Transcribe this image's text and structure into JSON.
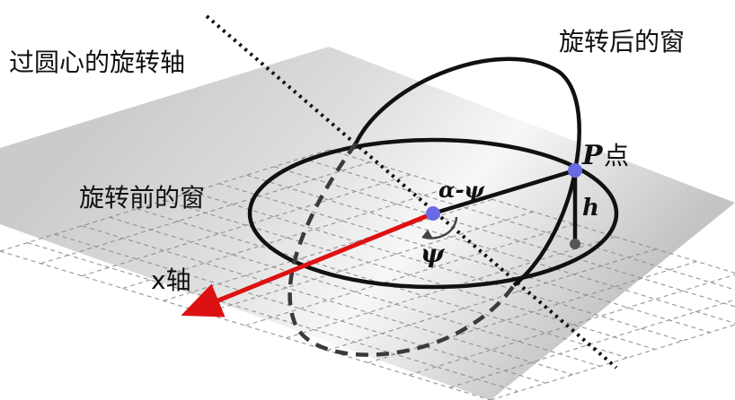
{
  "labels": {
    "axis_through_center": "过圆心的旋转轴",
    "rotated_window": "旋转后的窗",
    "window_before_rotation": "旋转前的窗",
    "x_axis": "x轴",
    "point_p_letter": "P",
    "point_p_suffix": "点",
    "alpha_minus_psi": "α-ψ",
    "psi": "ψ",
    "height": "h"
  },
  "colors": {
    "x_axis": "#dd1111",
    "points": "#6a6ae6",
    "curve": "#111111",
    "plane_dark": "#b4b4b4",
    "plane_light": "#f2f2f2",
    "grid": "#8a8a8a"
  }
}
